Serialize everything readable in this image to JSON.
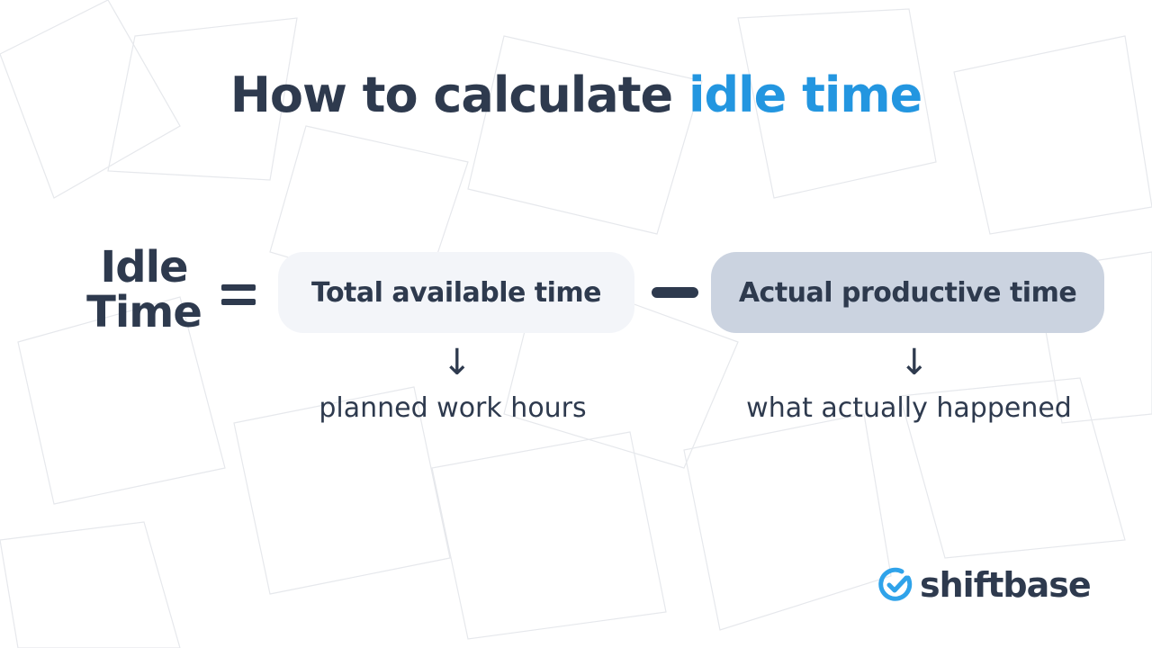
{
  "title": {
    "prefix": "How to calculate ",
    "highlight": "idle time"
  },
  "formula": {
    "lhs_line1": "Idle",
    "lhs_line2": "Time",
    "operator_equals": "=",
    "term1": {
      "label": "Total available time",
      "explanation": "planned work hours"
    },
    "operator_minus": "−",
    "term2": {
      "label": "Actual productive time",
      "explanation": "what actually happened"
    }
  },
  "logo": {
    "text": "shiftbase",
    "icon": "check-clock-icon"
  },
  "colors": {
    "accent": "#2396e0",
    "text": "#2e3a4e",
    "box1": "#f3f5f9",
    "box2": "#cbd3e0"
  }
}
